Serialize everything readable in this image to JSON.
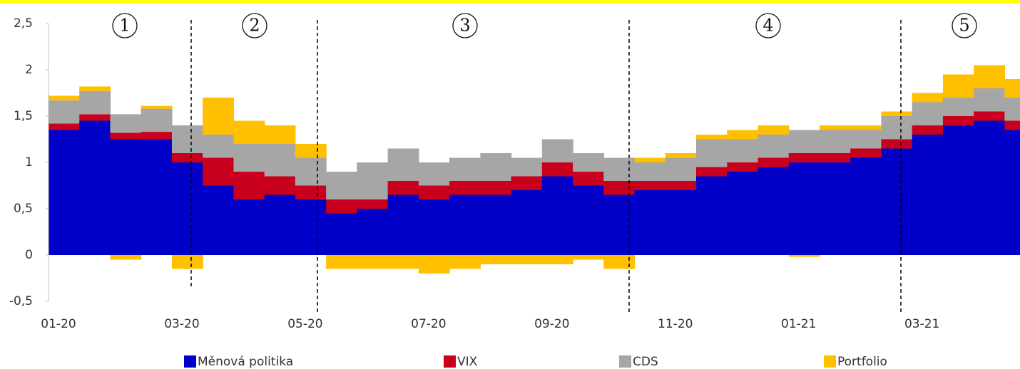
{
  "chart_data": {
    "type": "stacked_bar",
    "categories": [
      "01-20",
      null,
      null,
      null,
      "03-20",
      null,
      null,
      null,
      "05-20",
      null,
      null,
      null,
      "07-20",
      null,
      null,
      null,
      "09-20",
      null,
      null,
      null,
      "11-20",
      null,
      null,
      null,
      "01-21",
      null,
      null,
      null,
      "03-21",
      null,
      null,
      null
    ],
    "series": [
      {
        "name": "Měnová politika",
        "color": "#0000c8",
        "values": [
          1.35,
          1.45,
          1.25,
          1.25,
          1.0,
          0.75,
          0.6,
          0.65,
          0.6,
          0.45,
          0.5,
          0.65,
          0.6,
          0.65,
          0.65,
          0.7,
          0.85,
          0.75,
          0.65,
          0.7,
          0.7,
          0.85,
          0.9,
          0.95,
          1.0,
          1.0,
          1.05,
          1.15,
          1.3,
          1.4,
          1.45,
          1.35
        ]
      },
      {
        "name": "VIX",
        "color": "#c8001e",
        "values": [
          0.07,
          0.07,
          0.07,
          0.08,
          0.1,
          0.3,
          0.3,
          0.2,
          0.15,
          0.15,
          0.1,
          0.15,
          0.15,
          0.15,
          0.15,
          0.15,
          0.15,
          0.15,
          0.15,
          0.1,
          0.1,
          0.1,
          0.1,
          0.1,
          0.1,
          0.1,
          0.1,
          0.1,
          0.1,
          0.1,
          0.1,
          0.1
        ]
      },
      {
        "name": "CDS",
        "color": "#a6a6a6",
        "values": [
          0.25,
          0.25,
          0.2,
          0.25,
          0.3,
          0.25,
          0.3,
          0.35,
          0.3,
          0.3,
          0.4,
          0.35,
          0.25,
          0.25,
          0.3,
          0.2,
          0.25,
          0.2,
          0.25,
          0.2,
          0.25,
          0.3,
          0.25,
          0.25,
          0.25,
          0.25,
          0.2,
          0.25,
          0.25,
          0.2,
          0.25,
          0.25
        ]
      },
      {
        "name": "Portfolio",
        "color": "#ffc000",
        "values": [
          0.05,
          0.05,
          -0.05,
          0.03,
          -0.15,
          0.4,
          0.25,
          0.2,
          0.15,
          -0.15,
          -0.15,
          -0.15,
          -0.2,
          -0.15,
          -0.1,
          -0.1,
          -0.1,
          -0.05,
          -0.15,
          0.05,
          0.05,
          0.05,
          0.1,
          0.1,
          -0.02,
          0.05,
          0.05,
          0.05,
          0.1,
          0.25,
          0.25,
          0.2
        ]
      }
    ],
    "annotations": [
      "1",
      "2",
      "3",
      "4",
      "5"
    ],
    "ylim": [
      -0.5,
      2.5
    ],
    "yticks": [
      {
        "value": -0.5,
        "label": "-0,5"
      },
      0,
      {
        "value": 0.5,
        "label": "0,5"
      },
      1,
      {
        "value": 1.5,
        "label": "1,5"
      },
      2,
      {
        "value": 2.5,
        "label": "2,5"
      }
    ],
    "legend": "bottom"
  }
}
